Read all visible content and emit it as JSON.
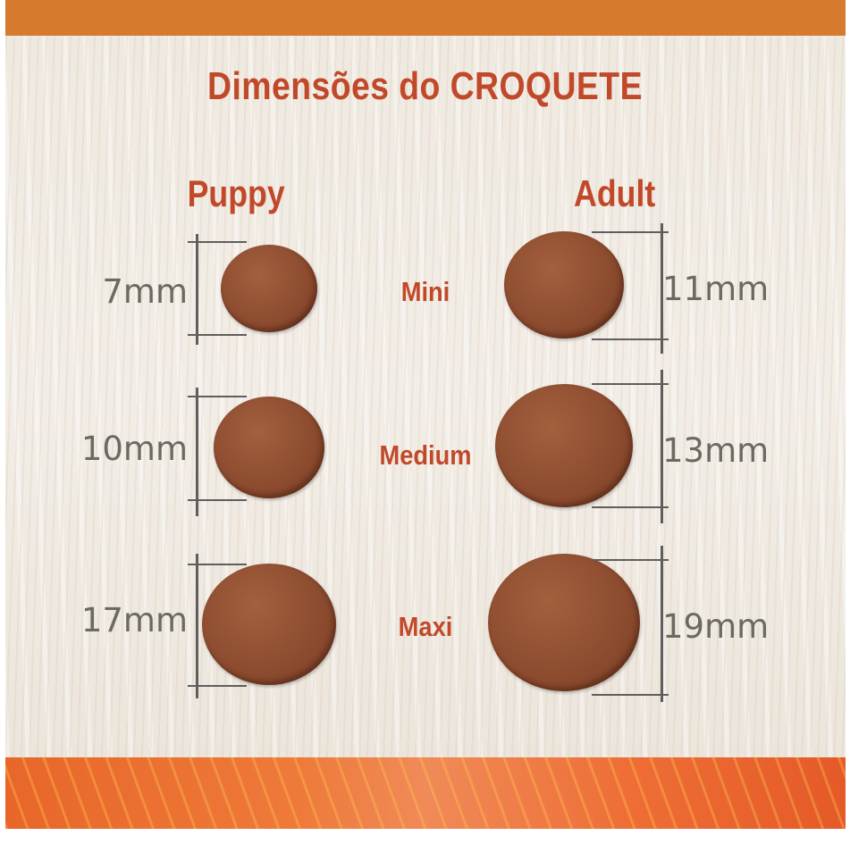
{
  "title": "Dimensões do CROQUETE",
  "columns": {
    "puppy": "Puppy",
    "adult": "Adult"
  },
  "sizes": [
    {
      "label": "Mini",
      "puppy": "7mm",
      "adult": "11mm"
    },
    {
      "label": "Medium",
      "puppy": "10mm",
      "adult": "13mm"
    },
    {
      "label": "Maxi",
      "puppy": "17mm",
      "adult": "19mm"
    }
  ],
  "colors": {
    "accent": "#c1492a",
    "top_bar": "#d57a2f",
    "kibble": "#8c4b2f",
    "measure_text": "#6b6a60"
  }
}
